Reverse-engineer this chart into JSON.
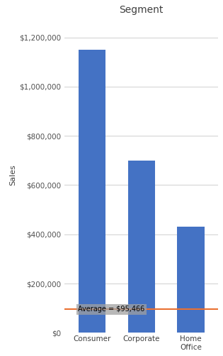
{
  "categories": [
    "Consumer",
    "Corporate",
    "Home\nOffice"
  ],
  "values": [
    1149128,
    700556,
    429653
  ],
  "bar_color": "#4472C4",
  "average_value": 95466,
  "average_label": "Average = $95,466",
  "title": "Segment",
  "ylabel": "Sales",
  "ylim": [
    0,
    1280000
  ],
  "yticks": [
    0,
    200000,
    400000,
    600000,
    800000,
    1000000,
    1200000
  ],
  "title_fontsize": 10,
  "axis_label_fontsize": 8,
  "tick_fontsize": 7.5,
  "bar_width": 0.55,
  "avg_line_color": "#E97132",
  "avg_label_bg": "#A0A0A0",
  "grid_color": "#D0D0D0",
  "background_color": "#FFFFFF"
}
